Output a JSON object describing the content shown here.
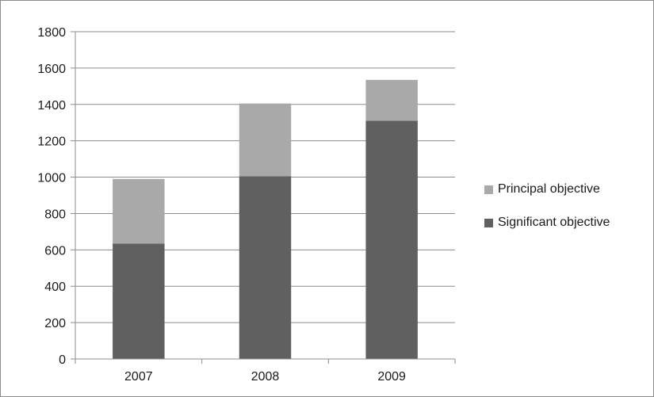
{
  "chart_data": {
    "type": "bar",
    "stacked": true,
    "title": "",
    "xlabel": "",
    "ylabel": "",
    "categories": [
      "2007",
      "2008",
      "2009"
    ],
    "ylim": [
      0,
      1800
    ],
    "yticks": [
      0,
      200,
      400,
      600,
      800,
      1000,
      1200,
      1400,
      1600,
      1800
    ],
    "grid": true,
    "legend_position": "right",
    "series": [
      {
        "name": "Significant objective",
        "values": [
          635,
          1005,
          1310
        ],
        "color": "#606060"
      },
      {
        "name": "Principal objective",
        "values": [
          355,
          400,
          225
        ],
        "color": "#a9a9a9"
      }
    ],
    "legend_order": [
      1,
      0
    ]
  }
}
